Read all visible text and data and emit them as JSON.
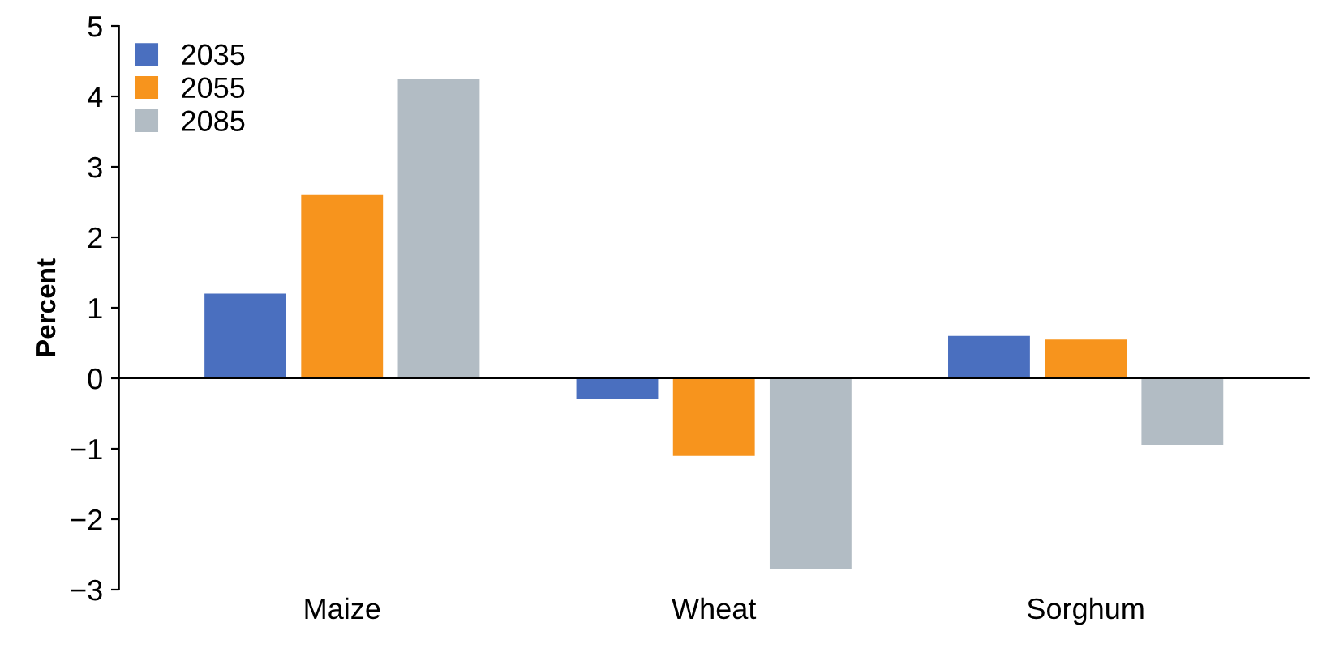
{
  "chart_data": {
    "type": "bar",
    "ylabel": "Percent",
    "categories": [
      "Maize",
      "Wheat",
      "Sorghum"
    ],
    "series": [
      {
        "name": "2035",
        "color": "#4a6fbf",
        "values": [
          1.2,
          -0.3,
          0.6
        ]
      },
      {
        "name": "2055",
        "color": "#f7941d",
        "values": [
          2.6,
          -1.1,
          0.55
        ]
      },
      {
        "name": "2085",
        "color": "#b2bcc4",
        "values": [
          4.25,
          -2.7,
          -0.95
        ]
      }
    ],
    "ylim": [
      -3,
      5
    ],
    "yticks": [
      {
        "value": -3,
        "label": "−3"
      },
      {
        "value": -2,
        "label": "−2"
      },
      {
        "value": -1,
        "label": "−1"
      },
      0,
      1,
      2,
      3,
      4,
      5
    ],
    "legend": "top left"
  }
}
